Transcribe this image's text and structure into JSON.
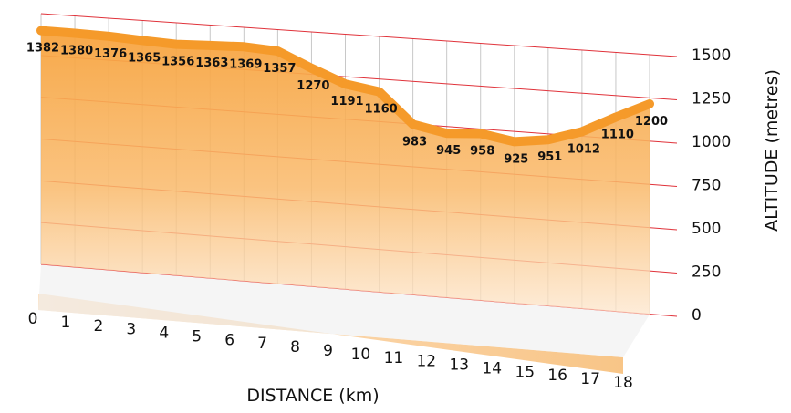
{
  "chart_data": {
    "type": "area",
    "xlabel": "DISTANCE (km)",
    "ylabel": "ALTITUDE (metres)",
    "x": [
      0,
      1,
      2,
      3,
      4,
      5,
      6,
      7,
      8,
      9,
      10,
      11,
      12,
      13,
      14,
      15,
      16,
      17,
      18
    ],
    "y": [
      1382,
      1380,
      1376,
      1365,
      1356,
      1363,
      1369,
      1357,
      1270,
      1191,
      1160,
      983,
      945,
      958,
      925,
      951,
      1012,
      1110,
      1200
    ],
    "data_labels": [
      "1382",
      "1380",
      "1376",
      "1365",
      "1356",
      "1363",
      "1369",
      "1357",
      "1270",
      "1191",
      "1160",
      "983",
      "945",
      "958",
      "925",
      "951",
      "1012",
      "1110",
      "1200"
    ],
    "x_ticks": [
      "0",
      "1",
      "2",
      "3",
      "4",
      "5",
      "6",
      "7",
      "8",
      "9",
      "10",
      "11",
      "12",
      "13",
      "14",
      "15",
      "16",
      "17",
      "18"
    ],
    "y_ticks": [
      "1500",
      "1250",
      "1000",
      "750",
      "500",
      "250",
      "0"
    ],
    "ylim": [
      0,
      1500
    ],
    "xlim": [
      0,
      18
    ],
    "grid": true,
    "style": "3d-perspective",
    "colors": {
      "fill_top": "#f7a440",
      "fill_bottom": "#fde3c6",
      "line": "#f59a2a",
      "grid_horizontal": "#e0323a",
      "grid_vertical": "#c8c8c8"
    }
  }
}
